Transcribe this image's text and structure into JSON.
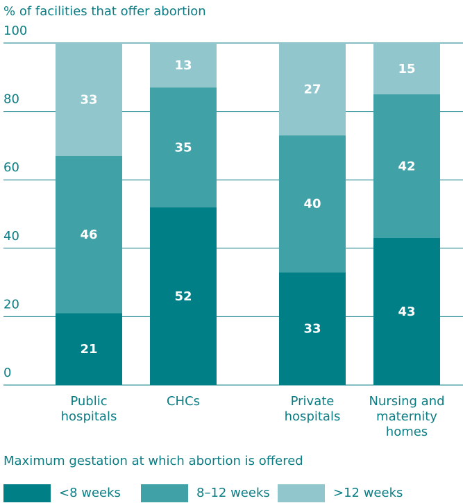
{
  "chart_data": {
    "type": "stacked_bar",
    "y_axis_label": "% of facilities that offer abortion",
    "categories": [
      "Public hospitals",
      "CHCs",
      "Private hospitals",
      "Nursing and maternity homes"
    ],
    "series": [
      {
        "name": "<8 weeks",
        "color": "#007f86",
        "values": [
          21,
          52,
          33,
          43
        ]
      },
      {
        "name": "8–12 weeks",
        "color": "#40a2a7",
        "values": [
          46,
          35,
          40,
          42
        ]
      },
      {
        "name": ">12 weeks",
        "color": "#90c6cc",
        "values": [
          33,
          13,
          27,
          15
        ]
      }
    ],
    "ylim": [
      0,
      100
    ],
    "yticks": [
      0,
      20,
      40,
      60,
      80,
      100
    ],
    "grid": true,
    "legend_title": "Maximum gestation at which abortion is offered",
    "legend_position": "bottom"
  }
}
